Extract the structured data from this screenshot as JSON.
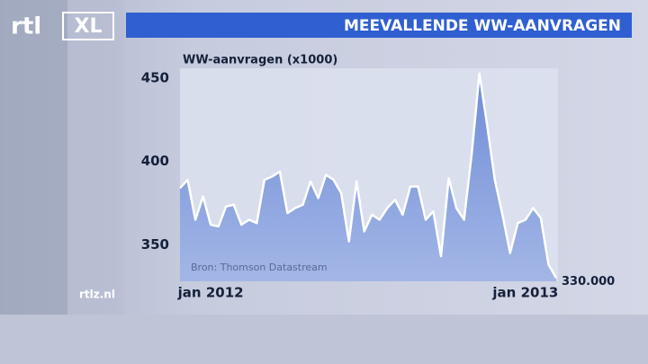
{
  "logo": {
    "rtl": "rtl",
    "xl": "XL"
  },
  "site": "rtlz.nl",
  "chart_data": {
    "type": "area",
    "title": "MEEVALLENDE WW-AANVRAGEN",
    "y_label": "WW-aanvragen (x1000)",
    "source": "Bron: Thomson Datastream",
    "categories": [
      null,
      null,
      null,
      null,
      "jan 2012",
      null,
      null,
      null,
      null,
      null,
      null,
      null,
      null,
      null,
      null,
      null,
      null,
      null,
      null,
      null,
      null,
      null,
      null,
      null,
      null,
      null,
      null,
      null,
      null,
      null,
      null,
      null,
      null,
      null,
      null,
      null,
      null,
      null,
      null,
      null,
      null,
      null,
      null,
      null,
      null,
      "jan 2013",
      null,
      null,
      null,
      null
    ],
    "values": [
      384,
      389,
      365,
      379,
      362,
      361,
      373,
      374,
      362,
      365,
      363,
      389,
      391,
      394,
      369,
      372,
      374,
      388,
      378,
      392,
      389,
      381,
      352,
      388,
      358,
      368,
      365,
      372,
      377,
      368,
      385,
      385,
      365,
      370,
      343,
      390,
      372,
      365,
      405,
      453,
      422,
      389,
      368,
      345,
      363,
      365,
      372,
      366,
      338,
      330
    ],
    "value_labels": [
      null,
      null,
      null,
      null,
      null,
      null,
      null,
      null,
      null,
      null,
      null,
      null,
      null,
      null,
      null,
      null,
      null,
      null,
      null,
      null,
      null,
      null,
      null,
      null,
      null,
      null,
      null,
      null,
      null,
      null,
      null,
      null,
      null,
      null,
      null,
      null,
      null,
      null,
      null,
      null,
      null,
      null,
      null,
      null,
      null,
      null,
      null,
      null,
      null,
      "330.000"
    ],
    "color": "#7d98da",
    "line_color": "#ffffff",
    "ylim": [
      328,
      456
    ],
    "yticks": [
      350,
      400,
      450
    ]
  }
}
